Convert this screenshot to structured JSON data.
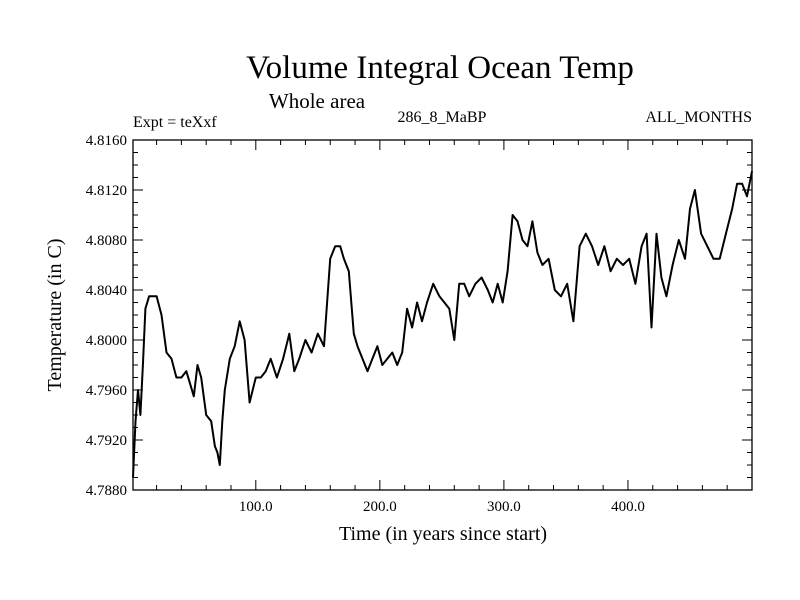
{
  "chart_data": {
    "type": "line",
    "title": "Volume Integral Ocean Temp",
    "subtitle": "Whole area",
    "info_left": "Expt = teXxf",
    "info_center": "286_8_MaBP",
    "info_right": "ALL_MONTHS",
    "xlabel": "Time (in years since start)",
    "ylabel": "Temperature (in C)",
    "xlim": [
      1,
      500
    ],
    "ylim": [
      4.788,
      4.816
    ],
    "xticks": [
      100,
      200,
      300,
      400
    ],
    "xtick_labels": [
      "100.0",
      "200.0",
      "300.0",
      "400.0"
    ],
    "yticks": [
      4.788,
      4.792,
      4.796,
      4.8,
      4.804,
      4.808,
      4.812,
      4.816
    ],
    "ytick_labels": [
      "4.7880",
      "4.7920",
      "4.7960",
      "4.8000",
      "4.8040",
      "4.8080",
      "4.8120",
      "4.8160"
    ],
    "series": [
      {
        "name": "Volume Integral Ocean Temp",
        "color": "#000000",
        "x": [
          1,
          3,
          5,
          7,
          9,
          11,
          14,
          17,
          20,
          24,
          28,
          32,
          36,
          40,
          44,
          47,
          50,
          53,
          56,
          60,
          64,
          67,
          69,
          71,
          73,
          75,
          79,
          83,
          87,
          91,
          95,
          100,
          104,
          108,
          112,
          117,
          122,
          127,
          131,
          135,
          140,
          145,
          150,
          155,
          160,
          164,
          168,
          171,
          175,
          179,
          182,
          186,
          190,
          194,
          198,
          202,
          206,
          210,
          214,
          218,
          222,
          226,
          230,
          234,
          238,
          243,
          248,
          252,
          256,
          260,
          264,
          268,
          272,
          277,
          282,
          287,
          291,
          295,
          299,
          303,
          307,
          311,
          315,
          319,
          323,
          327,
          331,
          336,
          341,
          346,
          351,
          356,
          361,
          366,
          371,
          376,
          381,
          386,
          391,
          396,
          401,
          406,
          411,
          415,
          419,
          423,
          427,
          431,
          436,
          441,
          446,
          450,
          454,
          459,
          464,
          469,
          474,
          479,
          484,
          488,
          492,
          496,
          500
        ],
        "y": [
          4.789,
          4.7935,
          4.796,
          4.794,
          4.798,
          4.8025,
          4.8035,
          4.8035,
          4.8035,
          4.802,
          4.799,
          4.7985,
          4.797,
          4.797,
          4.7975,
          4.7965,
          4.7955,
          4.798,
          4.797,
          4.794,
          4.7935,
          4.7915,
          4.791,
          4.79,
          4.7935,
          4.796,
          4.7985,
          4.7995,
          4.8015,
          4.8,
          4.795,
          4.797,
          4.797,
          4.7975,
          4.7985,
          4.797,
          4.7985,
          4.8005,
          4.7975,
          4.7985,
          4.8,
          4.799,
          4.8005,
          4.7995,
          4.8065,
          4.8075,
          4.8075,
          4.8065,
          4.8055,
          4.8005,
          4.7995,
          4.7985,
          4.7975,
          4.7985,
          4.7995,
          4.798,
          4.7985,
          4.799,
          4.798,
          4.799,
          4.8025,
          4.801,
          4.803,
          4.8015,
          4.803,
          4.8045,
          4.8035,
          4.803,
          4.8025,
          4.8,
          4.8045,
          4.8045,
          4.8035,
          4.8045,
          4.805,
          4.804,
          4.803,
          4.8045,
          4.803,
          4.8055,
          4.81,
          4.8095,
          4.808,
          4.8075,
          4.8095,
          4.807,
          4.806,
          4.8065,
          4.804,
          4.8035,
          4.8045,
          4.8015,
          4.8075,
          4.8085,
          4.8075,
          4.806,
          4.8075,
          4.8055,
          4.8065,
          4.806,
          4.8065,
          4.8045,
          4.8075,
          4.8085,
          4.801,
          4.8085,
          4.805,
          4.8035,
          4.806,
          4.808,
          4.8065,
          4.8105,
          4.812,
          4.8085,
          4.8075,
          4.8065,
          4.8065,
          4.8085,
          4.8105,
          4.8125,
          4.8125,
          4.8115,
          4.8135
        ]
      }
    ]
  }
}
